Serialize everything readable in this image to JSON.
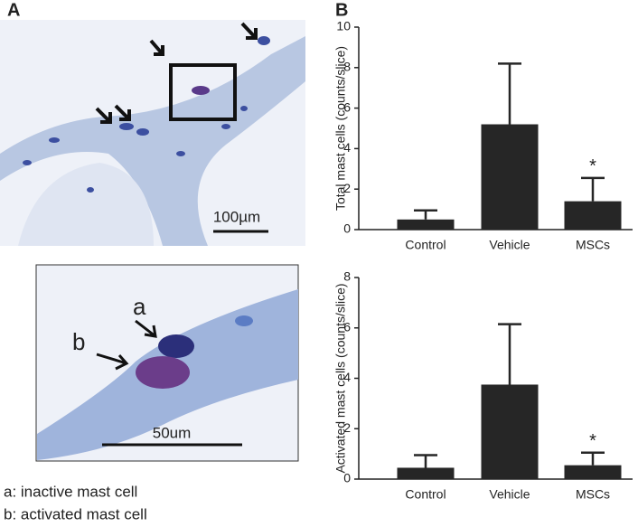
{
  "panel_labels": [
    "A",
    "B"
  ],
  "micrograph": {
    "scale_bar": "100µm"
  },
  "inset": {
    "labels": [
      "a",
      "b"
    ],
    "scale_bar": "50um"
  },
  "notes": [
    "a: inactive mast cell",
    "b: activated mast cell"
  ],
  "chart_data": [
    {
      "type": "bar",
      "y_label": "Total mast cells (counts/slice)",
      "categories": [
        "Control",
        "Vehicle",
        "MSCs"
      ],
      "values": [
        0.5,
        5.2,
        1.4
      ],
      "errors": [
        0.45,
        3.0,
        1.15
      ],
      "color": "#262626",
      "ylim": [
        0,
        10
      ],
      "yticks": [
        0,
        2,
        4,
        6,
        8,
        10
      ],
      "annotation": "*"
    },
    {
      "type": "bar",
      "y_label": "Activated mast cells (counts/slice)",
      "categories": [
        "Control",
        "Vehicle",
        "MSCs"
      ],
      "values": [
        0.45,
        3.75,
        0.55
      ],
      "errors": [
        0.5,
        2.4,
        0.5
      ],
      "color": "#262626",
      "ylim": [
        0,
        8
      ],
      "yticks": [
        0,
        2,
        4,
        6,
        8
      ],
      "annotation": "*"
    }
  ]
}
